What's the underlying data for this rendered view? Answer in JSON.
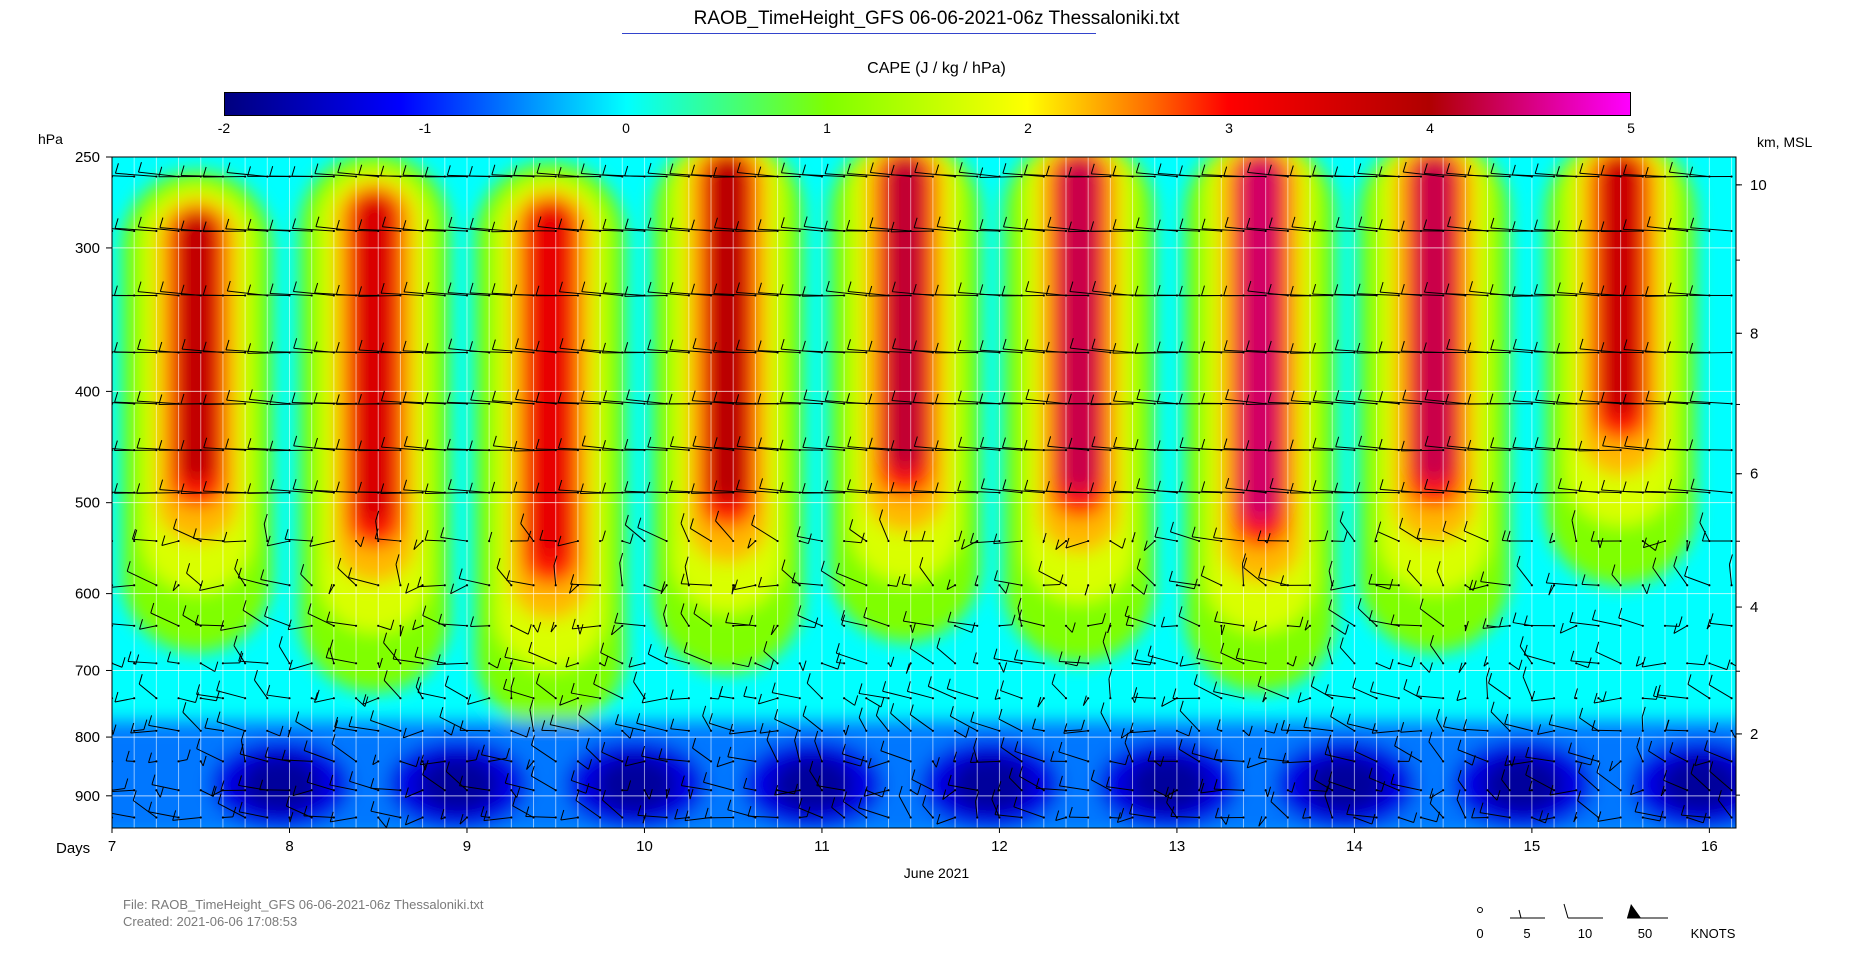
{
  "title": "RAOB_TimeHeight_GFS 06-06-2021-06z Thessaloniki.txt",
  "colorbar": {
    "title": "CAPE (J / kg / hPa)",
    "ticks": [
      "-2",
      "-1",
      "0",
      "1",
      "2",
      "3",
      "4",
      "5"
    ]
  },
  "axes": {
    "left_label": "hPa",
    "right_label": "km, MSL",
    "x_title": "Days",
    "x_sub_label": "June 2021"
  },
  "footer": {
    "file": "File: RAOB_TimeHeight_GFS 06-06-2021-06z Thessaloniki.txt",
    "created": "Created:  2021-06-06  17:08:53"
  },
  "wind_legend": {
    "labels": [
      "0",
      "5",
      "10",
      "50",
      "KNOTS"
    ]
  },
  "colors": {
    "scale": [
      "#00007f",
      "#0000ff",
      "#00ffff",
      "#7fff00",
      "#ffff00",
      "#ff6a00",
      "#ff0000",
      "#b00000",
      "#ff00ff"
    ]
  },
  "chart_data": {
    "type": "heatmap",
    "title": "RAOB_TimeHeight_GFS 06-06-2021-06z Thessaloniki.txt",
    "variable": "CAPE (J / kg / hPa)",
    "color_range": [
      -2,
      5
    ],
    "xlabel": "Days",
    "xsublabel": "June 2021",
    "xlim": [
      7,
      16.15
    ],
    "x_ticks": [
      "7",
      "8",
      "9",
      "10",
      "11",
      "12",
      "13",
      "14",
      "15",
      "16"
    ],
    "ylabel": "hPa",
    "ylim": [
      960,
      250
    ],
    "y_ticks": [
      "250",
      "300",
      "400",
      "500",
      "600",
      "700",
      "800",
      "900"
    ],
    "y2label": "km, MSL",
    "y2_ticks": [
      "10",
      "8",
      "6",
      "4",
      "2"
    ],
    "convective_cells": [
      {
        "day": 7.48,
        "top_hpa": 280,
        "bottom_hpa": 480,
        "peak": 3.8
      },
      {
        "day": 8.48,
        "top_hpa": 270,
        "bottom_hpa": 520,
        "peak": 3.5
      },
      {
        "day": 9.47,
        "top_hpa": 275,
        "bottom_hpa": 560,
        "peak": 3.3
      },
      {
        "day": 10.47,
        "top_hpa": 250,
        "bottom_hpa": 500,
        "peak": 3.9
      },
      {
        "day": 11.47,
        "top_hpa": 250,
        "bottom_hpa": 470,
        "peak": 4.2
      },
      {
        "day": 12.45,
        "top_hpa": 250,
        "bottom_hpa": 490,
        "peak": 4.3
      },
      {
        "day": 13.47,
        "top_hpa": 250,
        "bottom_hpa": 520,
        "peak": 4.4
      },
      {
        "day": 14.45,
        "top_hpa": 250,
        "bottom_hpa": 480,
        "peak": 4.3
      },
      {
        "day": 15.5,
        "top_hpa": 250,
        "bottom_hpa": 420,
        "peak": 3.7
      }
    ],
    "low_level_minimum": {
      "pressure_range_hpa": [
        960,
        760
      ],
      "min_value": -1.8
    }
  }
}
